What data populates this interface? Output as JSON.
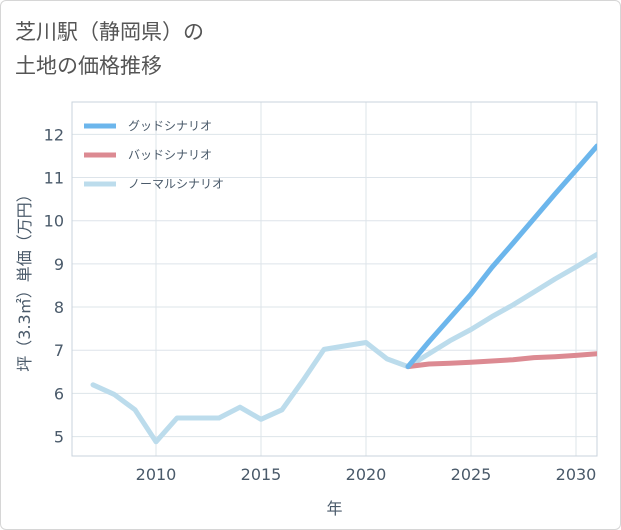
{
  "title": {
    "line1": "芝川駅（静岡県）の",
    "line2": "土地の価格推移"
  },
  "chart_data": {
    "type": "line",
    "xlabel": "年",
    "ylabel": "坪（3.3㎡）単価（万円）",
    "xlim": [
      2006,
      2031
    ],
    "ylim": [
      4.55,
      12.75
    ],
    "xticks": [
      2010,
      2015,
      2020,
      2025,
      2030
    ],
    "yticks": [
      5,
      6,
      7,
      8,
      9,
      10,
      11,
      12
    ],
    "grid": true,
    "legend_position": "top-left",
    "series": [
      {
        "name": "グッドシナリオ",
        "color": "#6cb6ec",
        "x": [
          2022,
          2023,
          2024,
          2025,
          2026,
          2027,
          2028,
          2029,
          2030,
          2031
        ],
        "y": [
          6.62,
          7.2,
          7.75,
          8.3,
          8.92,
          9.48,
          10.05,
          10.62,
          11.17,
          11.73
        ]
      },
      {
        "name": "バッドシナリオ",
        "color": "#dc8a92",
        "x": [
          2022,
          2023,
          2024,
          2025,
          2026,
          2027,
          2028,
          2029,
          2030,
          2031
        ],
        "y": [
          6.62,
          6.68,
          6.7,
          6.72,
          6.75,
          6.78,
          6.83,
          6.85,
          6.88,
          6.92
        ]
      },
      {
        "name": "ノーマルシナリオ",
        "color": "#bcdcec",
        "x": [
          2007,
          2008,
          2009,
          2010,
          2011,
          2012,
          2013,
          2014,
          2015,
          2016,
          2017,
          2018,
          2019,
          2020,
          2021,
          2022,
          2023,
          2024,
          2025,
          2026,
          2027,
          2028,
          2029,
          2030,
          2031
        ],
        "y": [
          6.2,
          5.98,
          5.62,
          4.88,
          5.43,
          5.43,
          5.43,
          5.68,
          5.4,
          5.62,
          6.3,
          7.02,
          7.1,
          7.18,
          6.8,
          6.62,
          6.92,
          7.22,
          7.48,
          7.78,
          8.05,
          8.35,
          8.65,
          8.93,
          9.22
        ]
      }
    ]
  }
}
